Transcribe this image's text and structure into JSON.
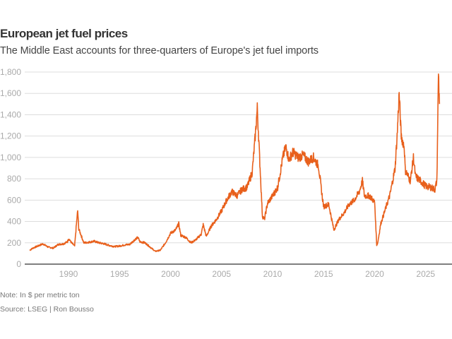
{
  "chart_data": {
    "type": "line",
    "title": "European jet fuel prices",
    "subtitle": "The Middle East accounts for three-quarters of Europe's jet fuel imports",
    "xlabel": "",
    "ylabel": "",
    "xlim": [
      1986,
      2026.4
    ],
    "ylim": [
      0,
      1800
    ],
    "yticks": [
      0,
      200,
      400,
      600,
      800,
      1000,
      1200,
      1400,
      1600,
      1800
    ],
    "ytick_labels": [
      "0",
      "200",
      "400",
      "600",
      "800",
      "1,000",
      "1,200",
      "1,400",
      "1,600",
      "1,800"
    ],
    "xticks": [
      1990,
      1995,
      2000,
      2005,
      2010,
      2015,
      2020,
      2025
    ],
    "xtick_labels": [
      "1990",
      "1995",
      "2000",
      "2005",
      "2010",
      "2015",
      "2020",
      "2025"
    ],
    "grid": true,
    "legend": "none",
    "color": "#e8601c",
    "series": [
      {
        "name": "European jet fuel price ($/metric ton)",
        "x": [
          1986.2,
          1986.5,
          1987.0,
          1987.5,
          1988.0,
          1988.5,
          1989.0,
          1989.5,
          1989.9,
          1990.0,
          1990.3,
          1990.6,
          1990.8,
          1990.9,
          1991.0,
          1991.2,
          1991.5,
          1992.0,
          1992.5,
          1993.0,
          1993.5,
          1994.0,
          1994.5,
          1995.0,
          1995.5,
          1996.0,
          1996.5,
          1996.8,
          1997.0,
          1997.5,
          1998.0,
          1998.5,
          1999.0,
          1999.5,
          2000.0,
          2000.5,
          2000.8,
          2001.0,
          2001.5,
          2002.0,
          2002.5,
          2003.0,
          2003.2,
          2003.5,
          2004.0,
          2004.5,
          2005.0,
          2005.5,
          2006.0,
          2006.5,
          2007.0,
          2007.5,
          2008.0,
          2008.3,
          2008.5,
          2008.7,
          2009.0,
          2009.2,
          2009.5,
          2010.0,
          2010.5,
          2011.0,
          2011.3,
          2011.6,
          2012.0,
          2012.5,
          2013.0,
          2013.5,
          2014.0,
          2014.5,
          2014.8,
          2015.0,
          2015.5,
          2016.0,
          2016.5,
          2017.0,
          2017.5,
          2018.0,
          2018.5,
          2018.8,
          2019.0,
          2019.5,
          2020.0,
          2020.2,
          2020.3,
          2020.6,
          2021.0,
          2021.5,
          2022.0,
          2022.2,
          2022.4,
          2022.6,
          2022.9,
          2023.0,
          2023.5,
          2023.8,
          2024.0,
          2024.5,
          2025.0,
          2025.5,
          2025.9,
          2026.1,
          2026.25,
          2026.35
        ],
        "values": [
          130,
          150,
          170,
          190,
          160,
          150,
          185,
          190,
          210,
          240,
          200,
          170,
          400,
          500,
          330,
          280,
          200,
          205,
          215,
          200,
          190,
          175,
          165,
          170,
          180,
          185,
          230,
          250,
          210,
          200,
          160,
          120,
          130,
          200,
          290,
          320,
          380,
          270,
          250,
          200,
          230,
          280,
          370,
          260,
          360,
          420,
          500,
          600,
          680,
          640,
          700,
          720,
          860,
          1200,
          1460,
          1050,
          450,
          420,
          570,
          640,
          720,
          1000,
          1100,
          980,
          1050,
          1000,
          1020,
          960,
          1000,
          920,
          680,
          540,
          560,
          320,
          420,
          480,
          560,
          600,
          680,
          780,
          640,
          640,
          580,
          180,
          200,
          380,
          500,
          650,
          900,
          1200,
          1600,
          1200,
          1100,
          880,
          780,
          1000,
          820,
          780,
          730,
          720,
          700,
          780,
          1800,
          1500
        ]
      }
    ]
  },
  "footer": {
    "note": "Note: In $ per metric ton",
    "source": "Source: LSEG | Ron Bousso"
  }
}
